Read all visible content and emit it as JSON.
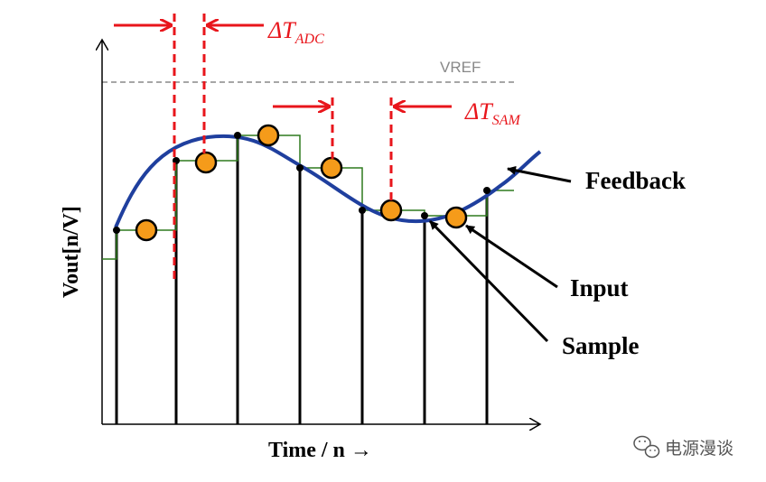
{
  "diagram": {
    "axis_labels": {
      "y": "Vout[n/V]",
      "x": "Time / n →"
    },
    "reference_label": "VREF",
    "delta_adc": {
      "symbol": "ΔT",
      "subscript": "ADC"
    },
    "delta_sam": {
      "symbol": "ΔT",
      "subscript": "SAM"
    },
    "callouts": {
      "feedback": "Feedback",
      "input": "Input",
      "sample": "Sample"
    },
    "watermark": "电源漫谈",
    "colors": {
      "curve": "#1f3f9e",
      "stairs": "#2f7a1f",
      "marker": "#f59b1a",
      "annotation": "#e8151b",
      "reference": "#888888",
      "text": "#000000"
    }
  }
}
